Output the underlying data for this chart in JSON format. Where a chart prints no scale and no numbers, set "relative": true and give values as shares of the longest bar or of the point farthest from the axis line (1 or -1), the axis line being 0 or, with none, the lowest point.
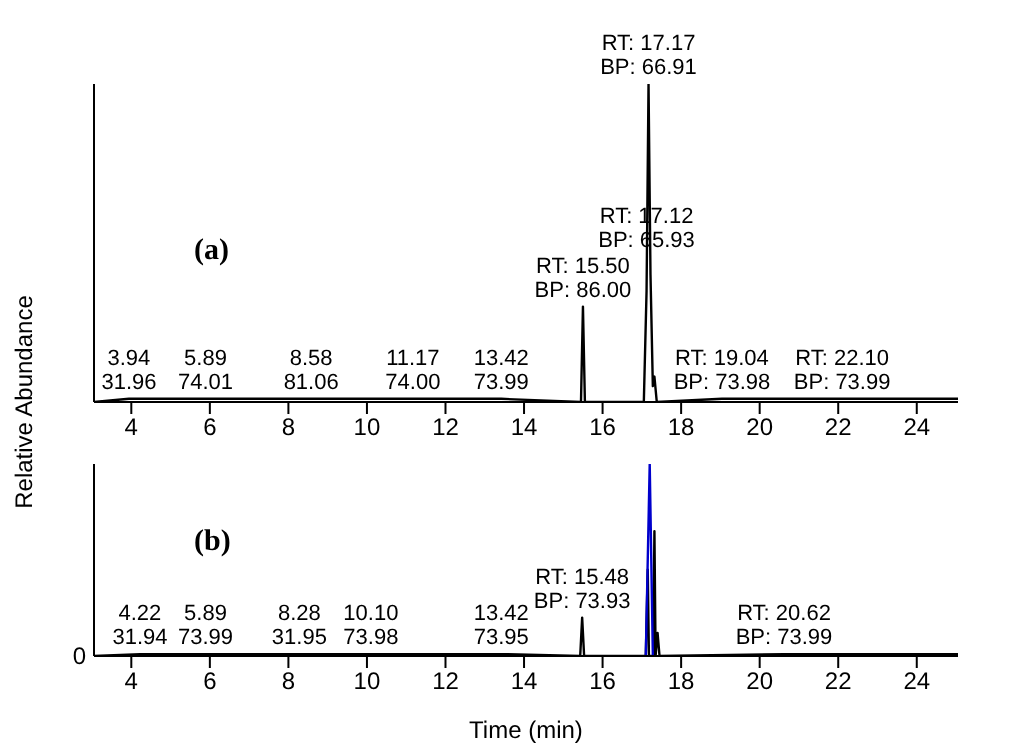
{
  "chart_data": [
    {
      "type": "line",
      "relative": true,
      "ylabel": "Relative Abundance",
      "xlim": [
        3.05,
        25.05
      ],
      "xticks": [
        4,
        6,
        8,
        10,
        12,
        14,
        16,
        18,
        20,
        22,
        24
      ],
      "series": [
        {
          "color": "#000000",
          "x": [
            3.05,
            3.94,
            5.89,
            8.58,
            11.17,
            13.42,
            15.45,
            15.5,
            15.55,
            17.05,
            17.12,
            17.17,
            17.22,
            17.28,
            17.32,
            17.38,
            19.04,
            22.1,
            24.6,
            25.05
          ],
          "values": [
            0,
            0.01,
            0.01,
            0.01,
            0.01,
            0.01,
            0,
            0.3,
            0,
            0,
            0.35,
            1,
            0.4,
            0.05,
            0.08,
            0,
            0.01,
            0.01,
            0.01,
            0.01
          ]
        }
      ],
      "annotations": [
        "(a)",
        {
          "text": "RT: 17.17\nBP: 66.91",
          "x": 17.17,
          "y": 1
        },
        {
          "text": "RT: 15.50\nBP: 86.00",
          "x": 15.5,
          "y": 0.3
        },
        {
          "text": "RT: 17.12\nBP: 65.93",
          "x": 17.12,
          "y": 0.35
        },
        {
          "text": "RT: 19.04\nBP: 73.98",
          "x": 19.04,
          "y": 0.01
        },
        {
          "text": "RT: 22.10\nBP: 73.99",
          "x": 22.1,
          "y": 0.01
        },
        {
          "text": "3.94\n31.96",
          "x": 3.94,
          "y": 0.01
        },
        {
          "text": "5.89\n74.01",
          "x": 5.89,
          "y": 0.01
        },
        {
          "text": "8.58\n81.06",
          "x": 8.58,
          "y": 0.01
        },
        {
          "text": "11.17\n74.00",
          "x": 11.17,
          "y": 0.01
        },
        {
          "text": "13.42\n73.99",
          "x": 13.42,
          "y": 0.01
        }
      ]
    },
    {
      "type": "line",
      "relative": true,
      "xlabel": "Time (min)",
      "xlim": [
        3.05,
        25.05
      ],
      "xticks": [
        4,
        6,
        8,
        10,
        12,
        14,
        16,
        18,
        20,
        22,
        24
      ],
      "series": [
        {
          "color": "#000000",
          "x": [
            3.05,
            4.22,
            5.89,
            8.28,
            10.1,
            13.42,
            15.43,
            15.48,
            15.53,
            17.1,
            17.15,
            17.18,
            17.29,
            17.32,
            17.35,
            17.4,
            17.45,
            20.62,
            23.5,
            25.05
          ],
          "values": [
            0,
            0.01,
            0.01,
            0.01,
            0.01,
            0.01,
            0,
            0.2,
            0,
            0,
            0.45,
            0,
            0,
            0.65,
            0,
            0.12,
            0,
            0.01,
            0.01,
            0.01
          ]
        },
        {
          "color": "#0000cc",
          "x": [
            17.1,
            17.2,
            17.28
          ],
          "values": [
            0,
            1,
            0
          ]
        }
      ],
      "annotations": [
        "(b)",
        "0",
        {
          "text": "RT: 15.48\nBP: 73.93",
          "x": 15.48,
          "y": 0.2
        },
        {
          "text": "RT: 20.62\nBP: 73.99",
          "x": 20.62,
          "y": 0.01
        },
        {
          "text": "4.22\n31.94",
          "x": 4.22,
          "y": 0.01
        },
        {
          "text": "5.89\n73.99",
          "x": 5.89,
          "y": 0.01
        },
        {
          "text": "8.28\n31.95",
          "x": 8.28,
          "y": 0.01
        },
        {
          "text": "10.10\n73.98",
          "x": 10.1,
          "y": 0.01
        },
        {
          "text": "13.42\n73.95",
          "x": 13.42,
          "y": 0.01
        }
      ]
    }
  ]
}
